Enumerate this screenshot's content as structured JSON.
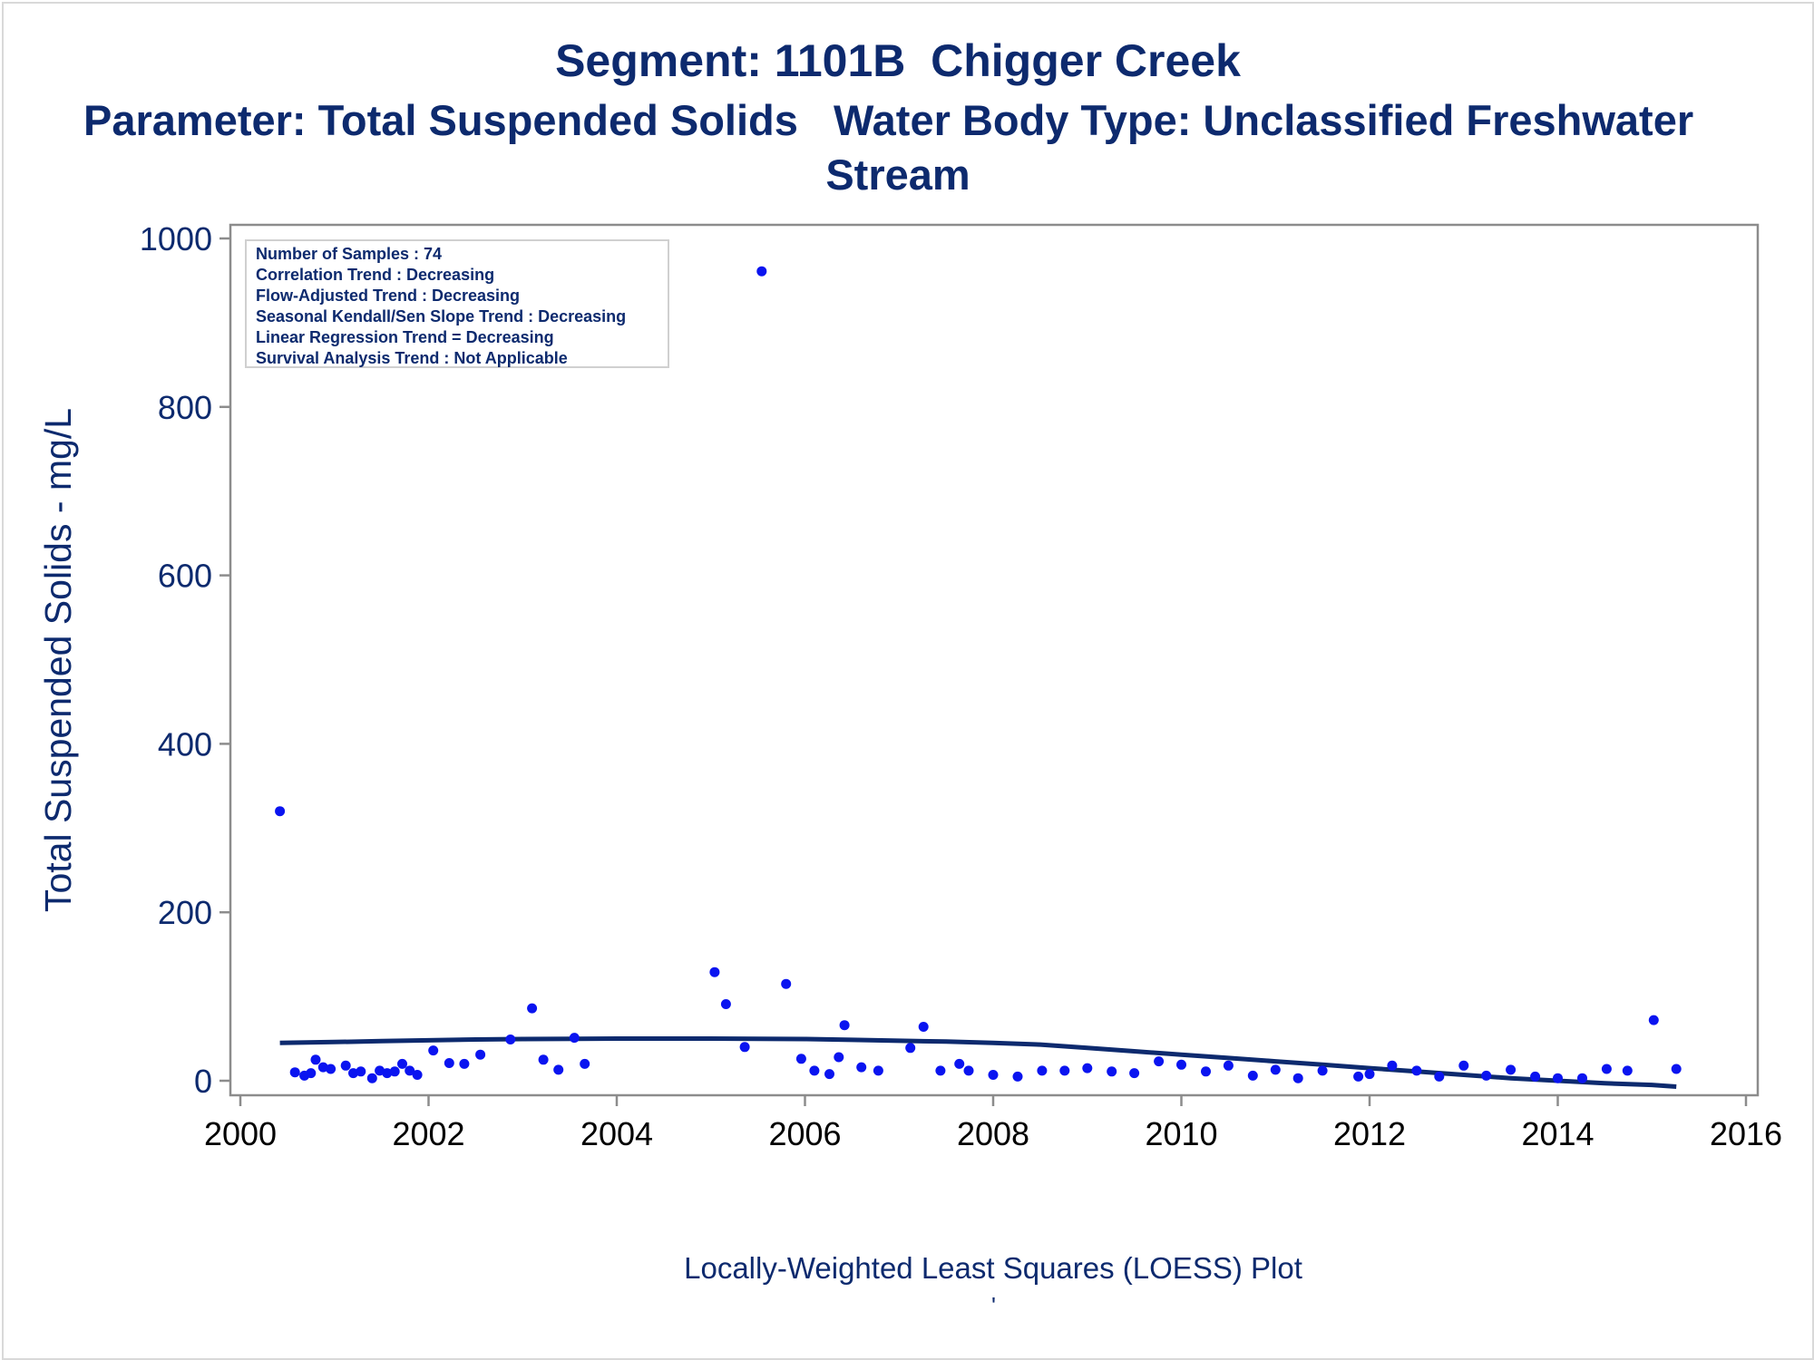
{
  "titles": {
    "line1": "Segment: 1101B  Chigger Creek",
    "line2": "Parameter: Total Suspended Solids   Water Body Type: Unclassified Freshwater",
    "line3": "Stream"
  },
  "footnote": "Locally-Weighted Least Squares (LOESS) Plot",
  "footnote_mark": "'",
  "stats": [
    "Number of Samples : 74",
    "Correlation Trend : Decreasing",
    "Flow-Adjusted Trend : Decreasing",
    "Seasonal Kendall/Sen Slope Trend : Decreasing",
    "Linear Regression Trend = Decreasing",
    "Survival Analysis Trend : Not Applicable"
  ],
  "colors": {
    "text": "#0d2a6e",
    "points": "#0a14f0",
    "loess": "#0d2a6e",
    "axis": "#8c8c8c"
  },
  "chart_data": {
    "type": "scatter",
    "title": "Segment: 1101B  Chigger Creek",
    "xlabel": "",
    "ylabel": "Total Suspended Solids - mg/L",
    "xlim": [
      2000,
      2016
    ],
    "ylim": [
      0,
      1000
    ],
    "xticks": [
      2000,
      2002,
      2004,
      2006,
      2008,
      2010,
      2012,
      2014,
      2016
    ],
    "yticks": [
      0,
      200,
      400,
      600,
      800,
      1000
    ],
    "grid": false,
    "series": [
      {
        "kind": "scatter",
        "points": [
          [
            2000.42,
            320
          ],
          [
            2000.58,
            10
          ],
          [
            2000.68,
            6
          ],
          [
            2000.75,
            9
          ],
          [
            2000.8,
            25
          ],
          [
            2000.88,
            16
          ],
          [
            2000.96,
            14
          ],
          [
            2001.12,
            18
          ],
          [
            2001.2,
            9
          ],
          [
            2001.28,
            11
          ],
          [
            2001.4,
            3
          ],
          [
            2001.48,
            12
          ],
          [
            2001.56,
            9
          ],
          [
            2001.64,
            11
          ],
          [
            2001.72,
            20
          ],
          [
            2001.8,
            12
          ],
          [
            2001.88,
            7
          ],
          [
            2002.05,
            36
          ],
          [
            2002.22,
            21
          ],
          [
            2002.38,
            20
          ],
          [
            2002.55,
            31
          ],
          [
            2002.87,
            49
          ],
          [
            2003.1,
            86
          ],
          [
            2003.22,
            25
          ],
          [
            2003.38,
            13
          ],
          [
            2003.55,
            51
          ],
          [
            2003.66,
            20
          ],
          [
            2005.04,
            129
          ],
          [
            2005.16,
            91
          ],
          [
            2005.36,
            40
          ],
          [
            2005.54,
            961
          ],
          [
            2005.8,
            115
          ],
          [
            2005.96,
            26
          ],
          [
            2006.1,
            12
          ],
          [
            2006.26,
            8
          ],
          [
            2006.36,
            28
          ],
          [
            2006.42,
            66
          ],
          [
            2006.6,
            16
          ],
          [
            2006.78,
            12
          ],
          [
            2007.12,
            39
          ],
          [
            2007.26,
            64
          ],
          [
            2007.44,
            12
          ],
          [
            2007.64,
            20
          ],
          [
            2007.74,
            12
          ],
          [
            2008.0,
            7
          ],
          [
            2008.26,
            5
          ],
          [
            2008.52,
            12
          ],
          [
            2008.76,
            12
          ],
          [
            2009.0,
            15
          ],
          [
            2009.26,
            11
          ],
          [
            2009.5,
            9
          ],
          [
            2009.76,
            23
          ],
          [
            2010.0,
            19
          ],
          [
            2010.26,
            11
          ],
          [
            2010.5,
            18
          ],
          [
            2010.76,
            6
          ],
          [
            2011.0,
            13
          ],
          [
            2011.24,
            3
          ],
          [
            2011.5,
            12
          ],
          [
            2011.88,
            5
          ],
          [
            2012.0,
            8
          ],
          [
            2012.24,
            18
          ],
          [
            2012.5,
            12
          ],
          [
            2012.74,
            5
          ],
          [
            2013.0,
            18
          ],
          [
            2013.24,
            6
          ],
          [
            2013.5,
            13
          ],
          [
            2013.76,
            5
          ],
          [
            2014.0,
            3
          ],
          [
            2014.26,
            3
          ],
          [
            2014.52,
            14
          ],
          [
            2014.74,
            12
          ],
          [
            2015.02,
            72
          ],
          [
            2015.26,
            14
          ]
        ]
      },
      {
        "kind": "loess",
        "points": [
          [
            2000.42,
            45
          ],
          [
            2001.0,
            46
          ],
          [
            2001.5,
            47
          ],
          [
            2002.0,
            48
          ],
          [
            2002.5,
            49
          ],
          [
            2003.0,
            49.5
          ],
          [
            2004.0,
            50
          ],
          [
            2005.0,
            50
          ],
          [
            2006.0,
            49.5
          ],
          [
            2006.5,
            48.5
          ],
          [
            2007.0,
            47.5
          ],
          [
            2007.5,
            46.5
          ],
          [
            2008.0,
            45
          ],
          [
            2008.5,
            43
          ],
          [
            2009.0,
            39
          ],
          [
            2009.5,
            35
          ],
          [
            2010.0,
            31
          ],
          [
            2010.5,
            27
          ],
          [
            2011.0,
            23
          ],
          [
            2011.5,
            19
          ],
          [
            2012.0,
            15
          ],
          [
            2012.5,
            11
          ],
          [
            2013.0,
            7
          ],
          [
            2013.5,
            3
          ],
          [
            2014.0,
            0
          ],
          [
            2014.5,
            -3
          ],
          [
            2015.0,
            -5
          ],
          [
            2015.26,
            -7
          ]
        ]
      }
    ]
  }
}
